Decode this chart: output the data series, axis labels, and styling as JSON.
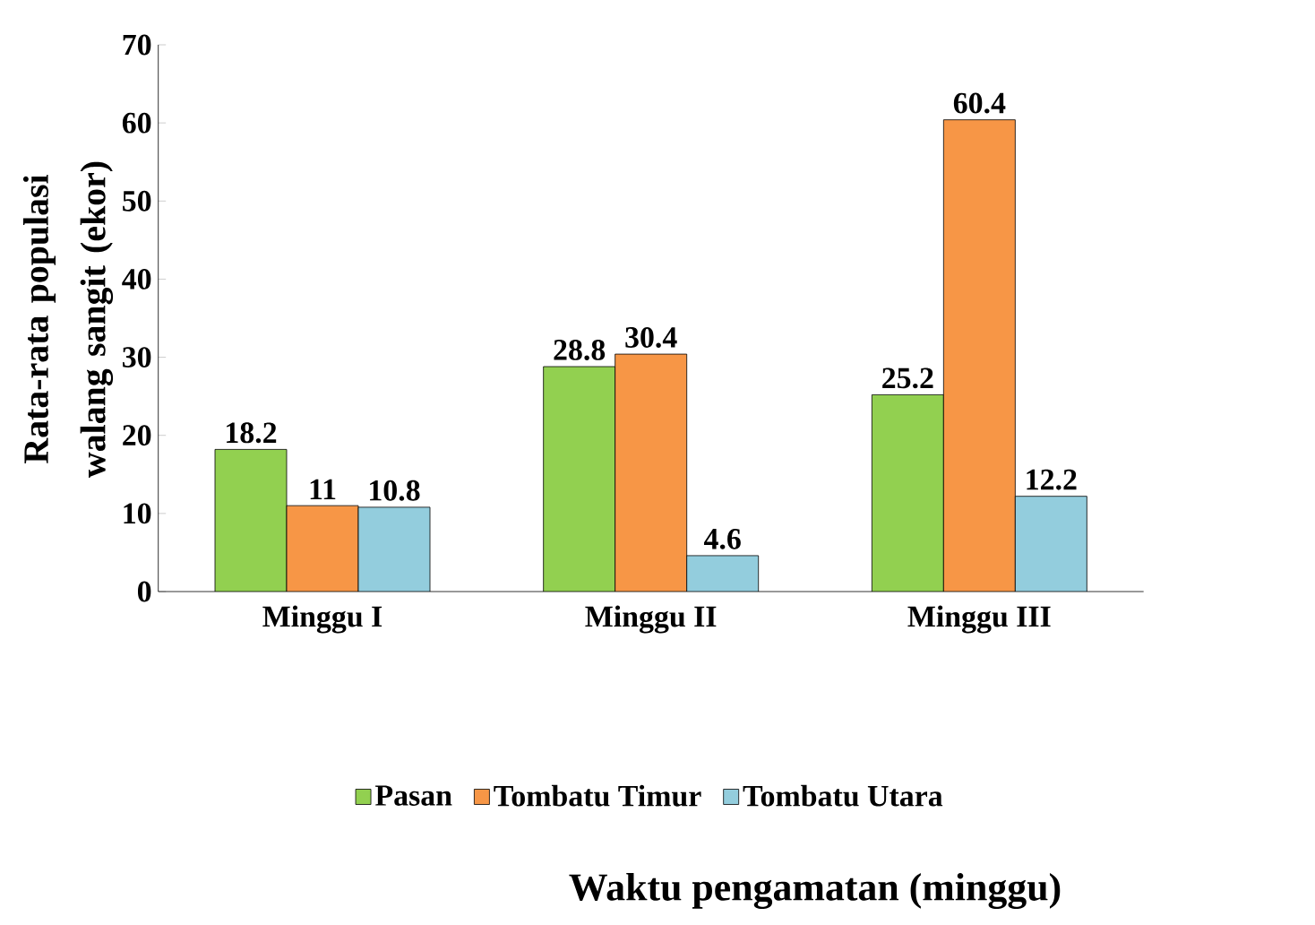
{
  "chart_data": {
    "type": "bar",
    "annotations": [
      "Waktu pengamatan  (minggu)"
    ],
    "ylabel": "Rata-rata populasi walang sangit (ekor)",
    "categories": [
      "Minggu I",
      "Minggu II",
      "Minggu III"
    ],
    "series": [
      {
        "name": "Pasan",
        "color": "#92d050",
        "values": [
          18.2,
          28.8,
          25.2
        ]
      },
      {
        "name": "Tombatu Timur",
        "color": "#f79646",
        "values": [
          11,
          30.4,
          60.4
        ]
      },
      {
        "name": "Tombatu Utara",
        "color": "#93cddd",
        "values": [
          10.8,
          4.6,
          12.2
        ]
      }
    ],
    "ylim": [
      0,
      70
    ],
    "yticks": [
      0,
      10,
      20,
      30,
      40,
      50,
      60,
      70
    ],
    "data_labels": true,
    "legend": "bottom"
  }
}
